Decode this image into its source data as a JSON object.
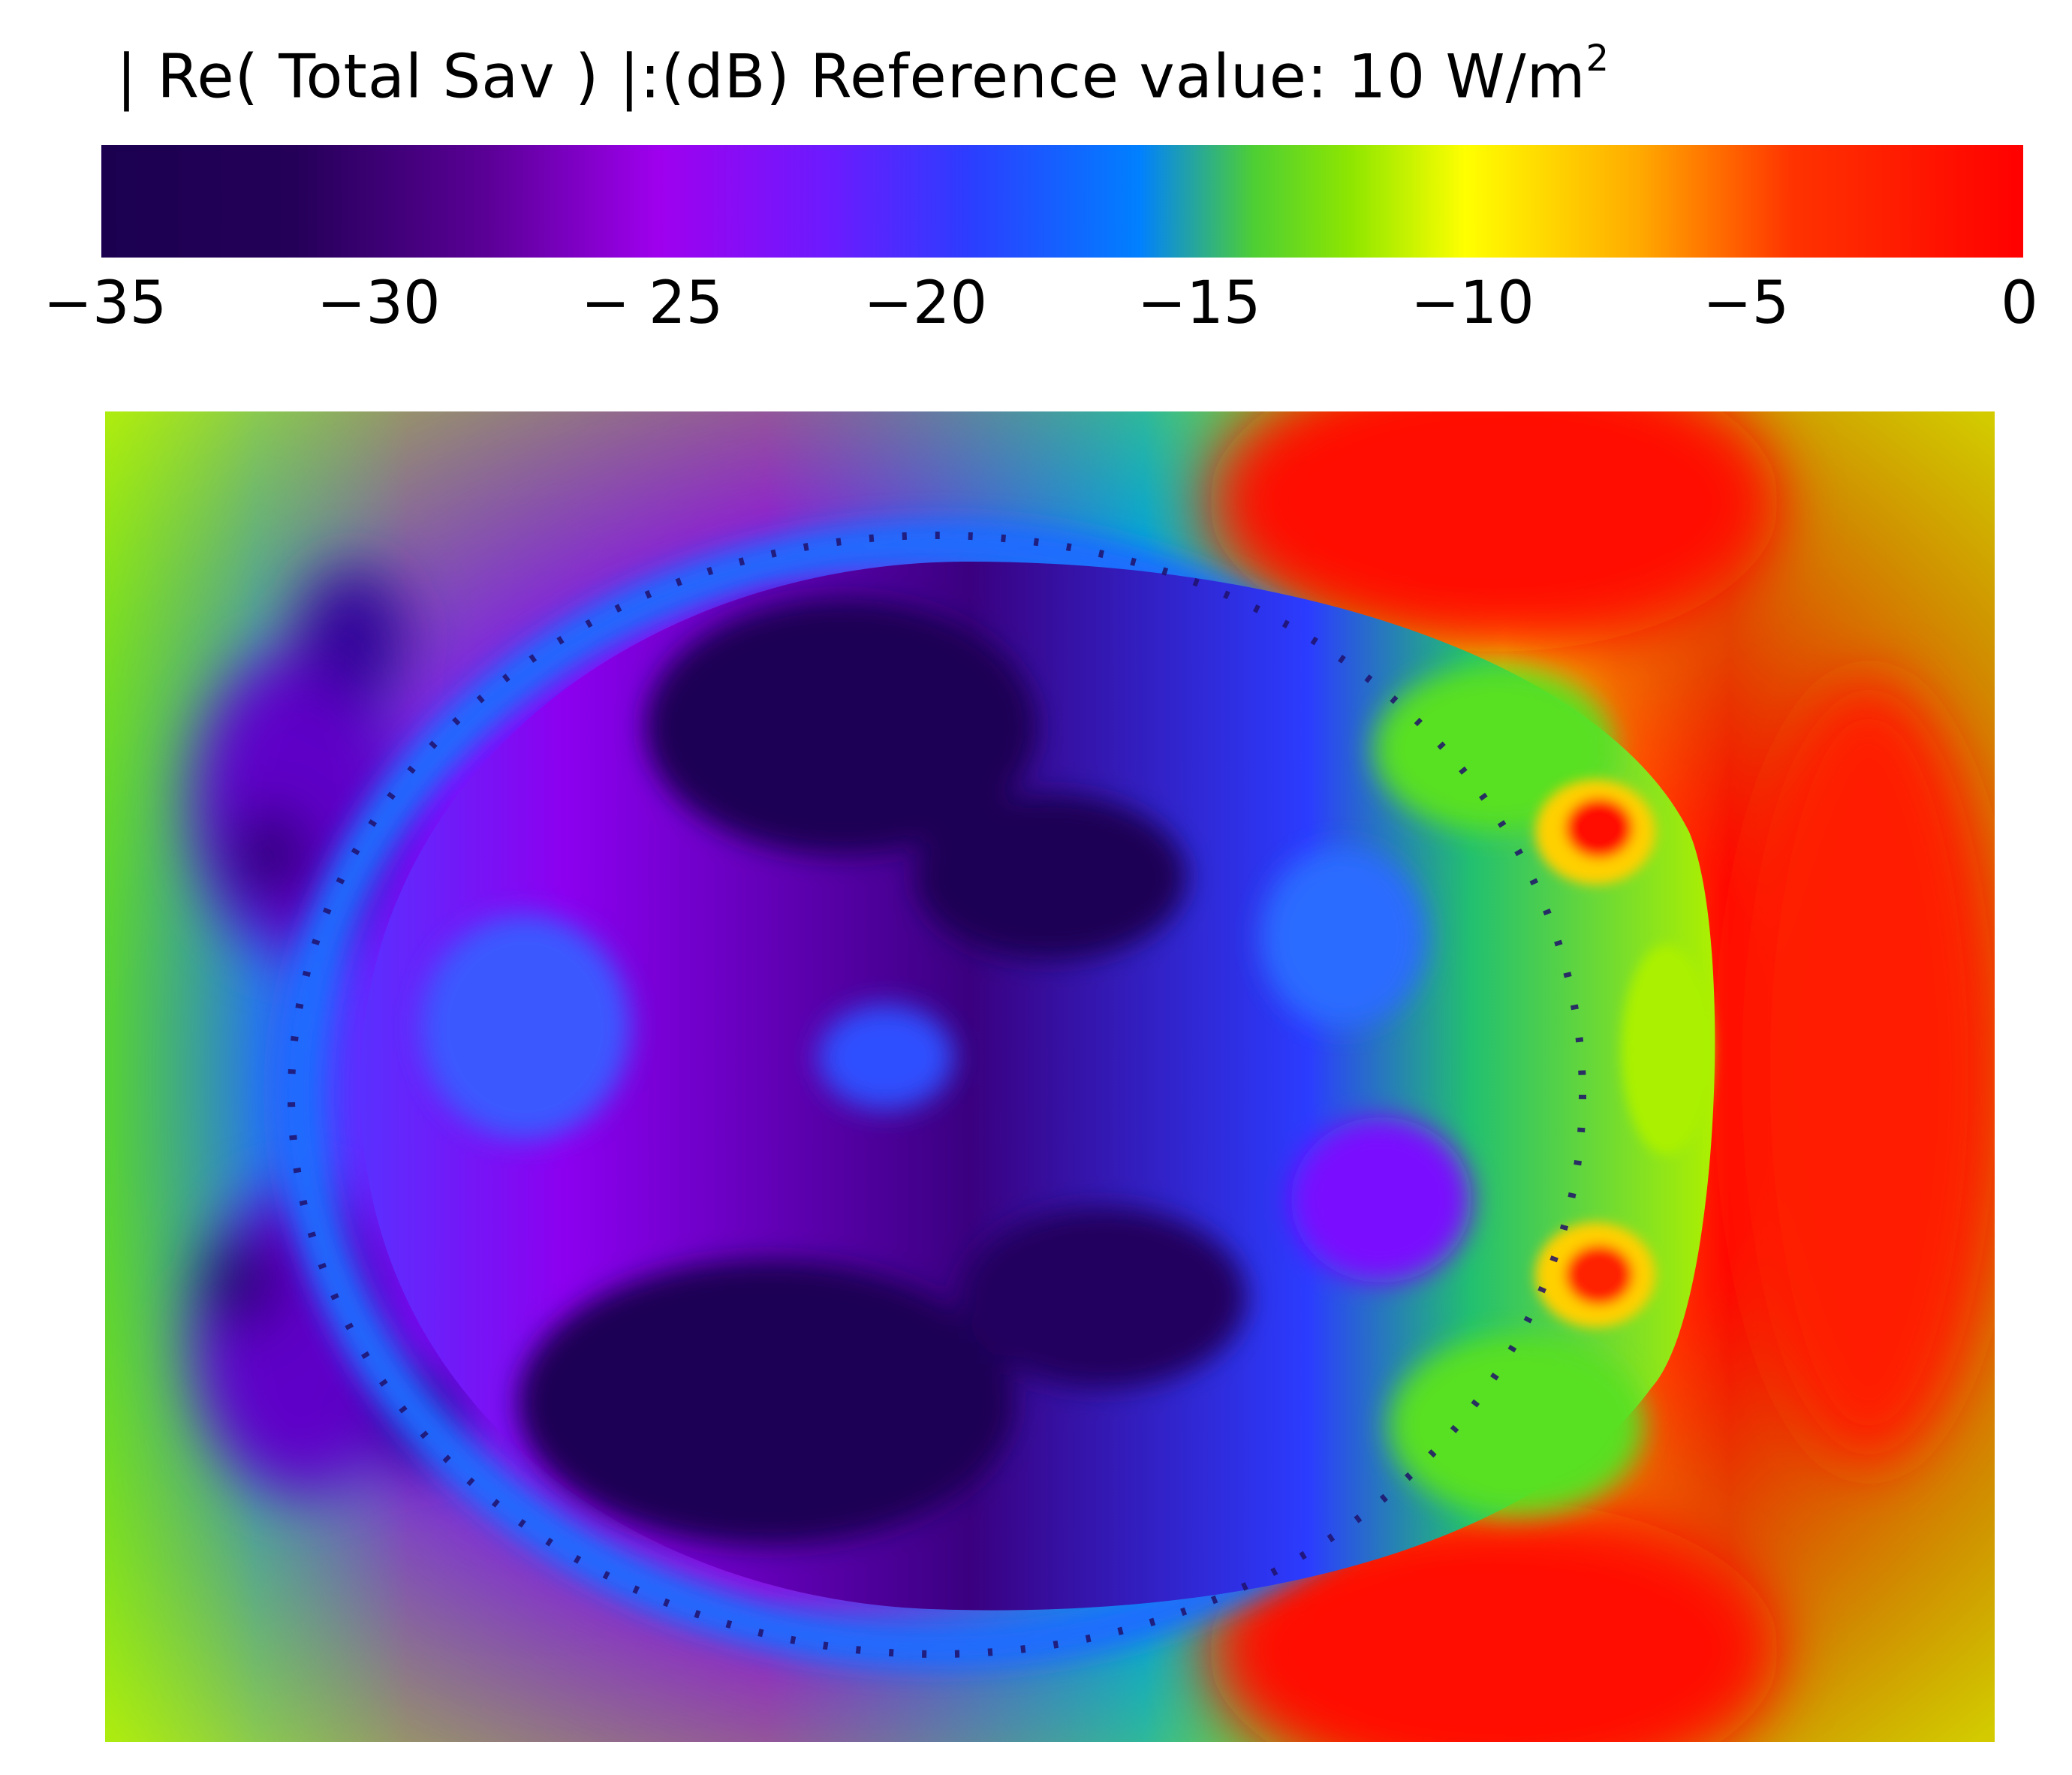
{
  "colorbar": {
    "title_main": "| Re( Total Sav ) |:(dB) Reference value: 10 W/m",
    "title_sup": "2",
    "stops": [
      "#1b0050",
      "#9b00e6",
      "#2a3cff",
      "#0078ff",
      "#7ae600",
      "#ffff00",
      "#ff9900",
      "#ff1a00",
      "#ff0000"
    ],
    "ticks": [
      "−35",
      "−30",
      "− 25",
      "−20",
      "−15",
      "−10",
      "−5",
      "0"
    ],
    "tick_values": [
      -35,
      -30,
      -25,
      -20,
      -15,
      -10,
      -5,
      0
    ]
  },
  "chart_data": {
    "type": "heatmap",
    "title": "| Re( Total Sav ) |:(dB) Reference value: 10 W/m2",
    "colorbar_range": [
      -35,
      0
    ],
    "colorbar_ticks": [
      -35,
      -30,
      -25,
      -20,
      -15,
      -10,
      -5,
      0
    ],
    "colormap": "purple-blue-green-yellow-red",
    "xlabel": "",
    "ylabel": ""
  }
}
